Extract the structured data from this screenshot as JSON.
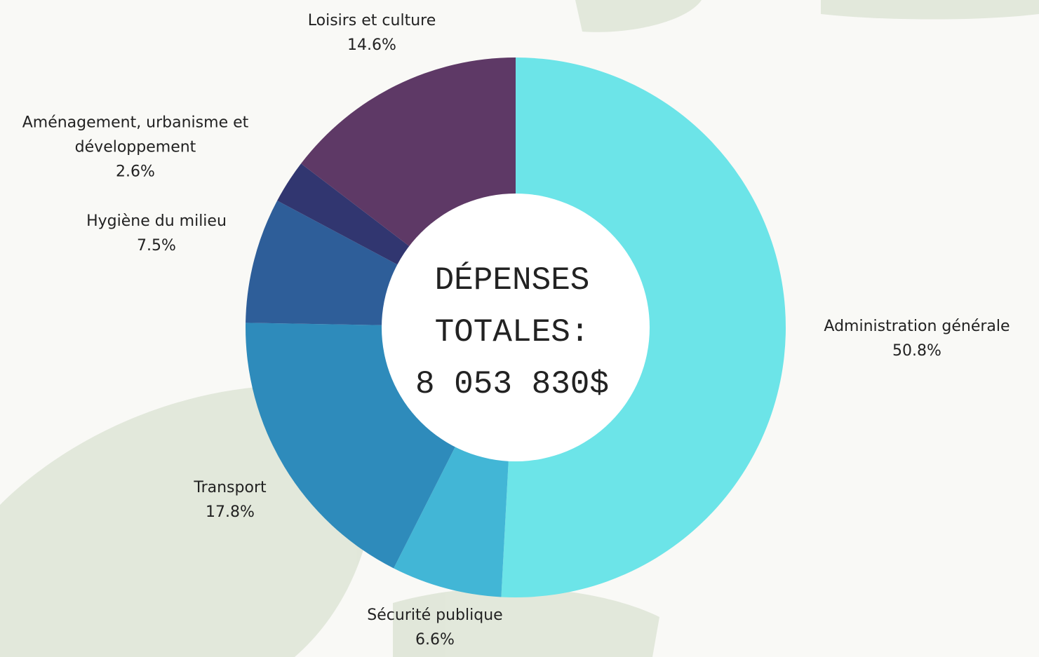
{
  "chart_data": {
    "type": "donut",
    "categories": [
      "Administration générale",
      "Sécurité publique",
      "Transport",
      "Hygiène du milieu",
      "Aménagement, urbanisme et développement",
      "Loisirs et culture"
    ],
    "values": [
      50.8,
      6.6,
      17.8,
      7.5,
      2.6,
      14.6
    ],
    "value_labels": [
      "50.8%",
      "6.6%",
      "17.8%",
      "7.5%",
      "2.6%",
      "14.6%"
    ],
    "colors": [
      "#6ce4e8",
      "#42b6d6",
      "#2e8bbb",
      "#2e5e99",
      "#313670",
      "#5e3966"
    ],
    "center_text": [
      "DÉPENSES",
      "TOTALES:",
      "8 053 830$"
    ]
  }
}
